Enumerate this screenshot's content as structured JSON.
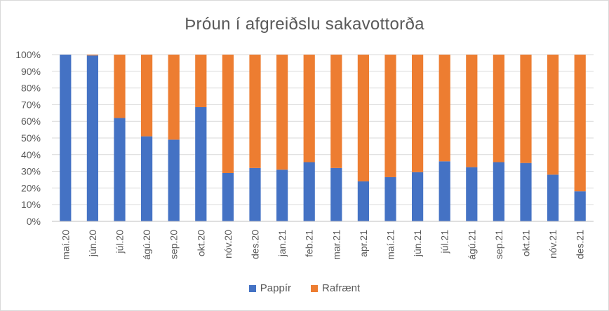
{
  "chart_data": {
    "type": "bar",
    "stacked": true,
    "title": "Þróun í afgreiðslu sakavottorða",
    "xlabel": "",
    "ylabel": "",
    "ylim": [
      0,
      100
    ],
    "yticks": [
      "0%",
      "10%",
      "20%",
      "30%",
      "40%",
      "50%",
      "60%",
      "70%",
      "80%",
      "90%",
      "100%"
    ],
    "categories": [
      "maí.20",
      "jún.20",
      "júl.20",
      "ágú.20",
      "sep.20",
      "okt.20",
      "nóv.20",
      "des.20",
      "jan.21",
      "feb.21",
      "mar.21",
      "apr.21",
      "maí.21",
      "jún.21",
      "júl.21",
      "ágú.21",
      "sep.21",
      "okt.21",
      "nóv.21",
      "des.21"
    ],
    "series": [
      {
        "name": "Pappír",
        "color": "#4472C4",
        "values": [
          100,
          99.5,
          62,
          51,
          49,
          68.5,
          29,
          32,
          31,
          35.5,
          32,
          24,
          26.5,
          29.5,
          36,
          32.5,
          35.5,
          35,
          28,
          18
        ]
      },
      {
        "name": "Rafrænt",
        "color": "#ED7D31",
        "values": [
          0,
          0.5,
          38,
          49,
          51,
          31.5,
          71,
          68,
          69,
          64.5,
          68,
          76,
          73.5,
          70.5,
          64,
          67.5,
          64.5,
          65,
          72,
          82
        ]
      }
    ],
    "grid": true,
    "legend_position": "bottom"
  }
}
